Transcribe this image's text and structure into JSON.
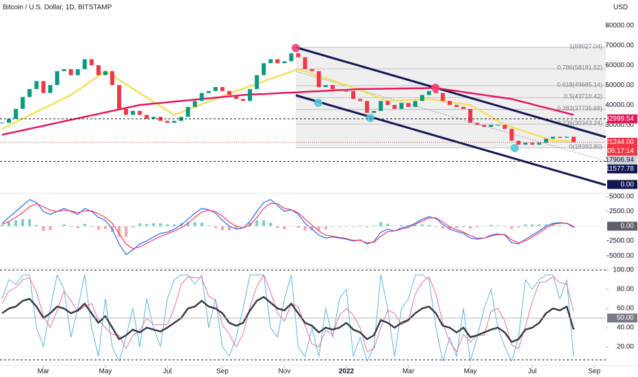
{
  "header": {
    "title": "Bitcoin / U.S. Dollar, 1D, BITSTAMP",
    "currency": "USD"
  },
  "chart_data": [
    {
      "type": "candlestick",
      "categories": [
        null,
        null,
        null,
        null,
        null,
        null,
        "Mar",
        null,
        null,
        null,
        null,
        null,
        null,
        null,
        null,
        "May",
        null,
        null,
        null,
        null,
        null,
        null,
        null,
        null,
        "Jul",
        null,
        null,
        null,
        null,
        null,
        null,
        null,
        "Sep",
        null,
        null,
        null,
        null,
        null,
        null,
        null,
        null,
        "Nov",
        null,
        null,
        null,
        null,
        null,
        null,
        null,
        null,
        "2022",
        null,
        null,
        null,
        null,
        null,
        null,
        null,
        null,
        "Mar",
        null,
        null,
        null,
        null,
        null,
        null,
        null,
        null,
        "May",
        null,
        null,
        null,
        null,
        null,
        null,
        null,
        null,
        "Jul",
        null,
        null,
        null,
        null,
        null,
        null,
        null,
        null,
        "Sep"
      ],
      "values": [
        31000,
        33000,
        38000,
        44000,
        48000,
        52000,
        46000,
        50000,
        57000,
        58000,
        55000,
        58000,
        63000,
        60000,
        55000,
        57000,
        50000,
        38000,
        35000,
        37000,
        35000,
        33000,
        34000,
        32000,
        31000,
        32000,
        34000,
        39000,
        42000,
        46000,
        47000,
        49000,
        47000,
        45000,
        43000,
        42000,
        48000,
        55000,
        61000,
        63000,
        61000,
        62000,
        66000,
        64000,
        58000,
        57000,
        49000,
        50000,
        48000,
        47000,
        47000,
        43000,
        42000,
        36000,
        37000,
        42000,
        40000,
        38000,
        41000,
        39000,
        42000,
        45000,
        47000,
        46000,
        42000,
        40000,
        39000,
        38000,
        31000,
        30000,
        29000,
        30000,
        30000,
        28000,
        22000,
        20000,
        21000,
        20000,
        21000,
        23000,
        24000,
        23500,
        24000,
        21244,
        null,
        null,
        null
      ],
      "up_color": "#089981",
      "down_color": "#f23645",
      "moving_averages": [
        {
          "color": "#f5e05a",
          "values": [
            28000,
            29700,
            31400,
            33100,
            34800,
            36500,
            38200,
            39900,
            41600,
            43300,
            45000,
            47400,
            49800,
            52200,
            54600,
            57000,
            54800,
            52600,
            50400,
            48200,
            46000,
            43800,
            41600,
            39400,
            37200,
            35000,
            36300,
            37700,
            39000,
            40300,
            41700,
            43000,
            44300,
            45700,
            47000,
            48200,
            49400,
            50700,
            51900,
            53100,
            54300,
            55600,
            56800,
            58000,
            56900,
            55700,
            54600,
            53400,
            52300,
            51100,
            50000,
            48700,
            47300,
            46000,
            44700,
            43300,
            42000,
            42200,
            42300,
            42500,
            42700,
            42800,
            43000,
            42500,
            42000,
            41500,
            41000,
            40500,
            40000,
            38000,
            36000,
            34000,
            32000,
            30000,
            28900,
            27700,
            26600,
            25400,
            24300,
            23100,
            22000,
            22000,
            21900,
            21800,
            null,
            null,
            null
          ]
        },
        {
          "color": "#e3175a",
          "values": [
            25000,
            25750,
            26500,
            27250,
            28000,
            28750,
            29500,
            30250,
            31000,
            31750,
            32500,
            33250,
            34000,
            34750,
            35500,
            36250,
            37000,
            37750,
            38500,
            39250,
            40000,
            40300,
            40700,
            41000,
            41300,
            41700,
            42000,
            42300,
            42700,
            43000,
            43300,
            43700,
            44000,
            44300,
            44700,
            45000,
            45200,
            45400,
            45500,
            45700,
            45900,
            46100,
            46200,
            46400,
            46600,
            46800,
            46900,
            47100,
            47300,
            47500,
            47600,
            47800,
            48000,
            48000,
            48100,
            48100,
            48200,
            48200,
            48300,
            48300,
            48400,
            48400,
            48500,
            48500,
            48000,
            47500,
            47000,
            46500,
            46000,
            45500,
            45000,
            44500,
            44000,
            43500,
            43000,
            42100,
            41200,
            40300,
            39400,
            38600,
            37700,
            36800,
            35900,
            35000,
            null,
            null,
            null
          ]
        }
      ],
      "ylim": [
        -4100,
        92800
      ],
      "yticks": [
        {
          "value": 30000,
          "label": "30000.00"
        },
        {
          "value": 40000,
          "label": "40000.00"
        },
        {
          "value": 50000,
          "label": "50000.00"
        },
        {
          "value": 60000,
          "label": "60000.00"
        },
        {
          "value": 70000,
          "label": "70000.00"
        },
        {
          "value": 80000,
          "label": "80000.00"
        }
      ],
      "fib_levels": [
        {
          "value": 69027.04,
          "label": "1(69027.04)"
        },
        {
          "value": 58191.52,
          "label": "0.786(58191.52)"
        },
        {
          "value": 49685.14,
          "label": "0.618(49685.14)"
        },
        {
          "value": 43710.42,
          "label": "0.5(43710.42)"
        },
        {
          "value": 37735.69,
          "label": "0.382(37735.69)"
        },
        {
          "value": 30343.24,
          "label": "0.236(30343.24)"
        },
        {
          "value": 18393.8,
          "label": "0(18393.80)"
        }
      ],
      "price_tags": [
        {
          "value": 32999.54,
          "label": "32999.54",
          "color": "#e3175a",
          "line": "dashed"
        },
        {
          "value": 21244.0,
          "label": "21244.00",
          "color": "#f23645",
          "line": "dotted",
          "countdown": "06:17:14"
        },
        {
          "value": 17906.94,
          "label": "17906.94",
          "color": "#d1d4dc"
        },
        {
          "value": 11577.78,
          "label": "11577.78",
          "color": "#131650",
          "line": "dashed"
        },
        {
          "value": 0,
          "label": "0.00",
          "color": "#131650"
        }
      ]
    },
    {
      "type": "macd",
      "series": [
        {
          "color": "#2962ff",
          "values": [
            500,
            1500,
            2500,
            3500,
            4500,
            4000,
            2500,
            2000,
            2500,
            3000,
            2500,
            2000,
            3000,
            2500,
            1500,
            1000,
            -500,
            -3000,
            -4800,
            -4000,
            -3000,
            -2500,
            -1800,
            -1200,
            -1000,
            -500,
            200,
            1200,
            2200,
            3000,
            2800,
            2200,
            1000,
            0,
            -500,
            -300,
            800,
            2500,
            4000,
            4500,
            3500,
            2500,
            2800,
            2000,
            500,
            -500,
            -1500,
            -2000,
            -1800,
            -2000,
            -2200,
            -2500,
            -2300,
            -3000,
            -2600,
            -1000,
            -500,
            -800,
            -300,
            0,
            500,
            1200,
            1600,
            1300,
            300,
            -500,
            -900,
            -1200,
            -2000,
            -2200,
            -2000,
            -1500,
            -1300,
            -1500,
            -2800,
            -3000,
            -2200,
            -1500,
            -800,
            0,
            500,
            600,
            500,
            -200,
            null,
            null,
            null
          ]
        },
        {
          "color": "#f0385e",
          "values": [
            300,
            800,
            1500,
            2300,
            3300,
            3800,
            3300,
            2700,
            2500,
            2700,
            2600,
            2300,
            2600,
            2600,
            2100,
            1500,
            500,
            -1200,
            -3000,
            -3800,
            -3500,
            -2900,
            -2300,
            -1700,
            -1300,
            -800,
            -300,
            500,
            1500,
            2400,
            2700,
            2500,
            1700,
            700,
            0,
            -300,
            200,
            1500,
            3000,
            3900,
            3800,
            3000,
            2800,
            2300,
            1200,
            200,
            -800,
            -1500,
            -1700,
            -1900,
            -2100,
            -2400,
            -2400,
            -2800,
            -2700,
            -1700,
            -900,
            -800,
            -500,
            -200,
            300,
            900,
            1400,
            1400,
            700,
            -100,
            -600,
            -1000,
            -1600,
            -2000,
            -2000,
            -1700,
            -1400,
            -1400,
            -2300,
            -2800,
            -2500,
            -1800,
            -1100,
            -300,
            300,
            500,
            500,
            0,
            null,
            null,
            null
          ]
        }
      ],
      "histogram": {
        "up_color": "#4db6ac",
        "down_color": "#f77c80",
        "values": [
          200,
          700,
          1000,
          1200,
          1200,
          200,
          -800,
          -700,
          0,
          300,
          -100,
          -300,
          400,
          -100,
          -600,
          -500,
          -1000,
          -1800,
          -1800,
          -200,
          500,
          400,
          500,
          500,
          300,
          300,
          500,
          700,
          700,
          600,
          100,
          -300,
          -700,
          -700,
          -500,
          0,
          600,
          1000,
          1000,
          600,
          -300,
          -500,
          0,
          -300,
          -700,
          -700,
          -700,
          -500,
          -100,
          -100,
          -100,
          -100,
          100,
          -200,
          100,
          700,
          400,
          0,
          200,
          200,
          200,
          300,
          200,
          -100,
          -400,
          -400,
          -300,
          -200,
          -400,
          -200,
          0,
          200,
          100,
          -100,
          -500,
          -200,
          300,
          300,
          300,
          300,
          200,
          100,
          0,
          -200,
          null,
          null,
          null
        ]
      },
      "ylim": [
        -6950,
        5450
      ],
      "yticks": [
        {
          "value": -5000,
          "label": "-5000.00"
        },
        {
          "value": -2500,
          "label": "-2500.00"
        },
        {
          "value": 2500,
          "label": "2500.00"
        },
        {
          "value": 5000,
          "label": "5000.00"
        }
      ],
      "price_tags": [
        {
          "value": 0,
          "label": "0.00",
          "color": "#5d606b"
        }
      ]
    },
    {
      "type": "oscillator",
      "series": [
        {
          "color": "#5ab3e6",
          "width": 1,
          "values": [
            70,
            90,
            85,
            95,
            95,
            40,
            20,
            60,
            95,
            80,
            30,
            60,
            95,
            40,
            10,
            70,
            20,
            5,
            30,
            60,
            20,
            70,
            40,
            20,
            70,
            90,
            95,
            95,
            85,
            95,
            40,
            70,
            20,
            10,
            30,
            60,
            95,
            95,
            95,
            40,
            30,
            70,
            95,
            20,
            10,
            40,
            10,
            60,
            30,
            70,
            80,
            10,
            30,
            5,
            20,
            95,
            60,
            10,
            60,
            70,
            95,
            95,
            90,
            40,
            5,
            30,
            10,
            60,
            5,
            30,
            60,
            80,
            40,
            20,
            5,
            30,
            90,
            80,
            90,
            95,
            95,
            70,
            90,
            10,
            null,
            null,
            null
          ]
        },
        {
          "color": "#e96f9a",
          "width": 1,
          "values": [
            65,
            78,
            82,
            90,
            92,
            77,
            52,
            40,
            58,
            78,
            68,
            57,
            62,
            65,
            48,
            40,
            33,
            32,
            18,
            32,
            37,
            50,
            43,
            43,
            43,
            60,
            85,
            93,
            92,
            92,
            73,
            68,
            43,
            33,
            20,
            33,
            62,
            83,
            95,
            77,
            55,
            47,
            65,
            62,
            42,
            23,
            20,
            37,
            33,
            53,
            60,
            53,
            40,
            15,
            18,
            40,
            58,
            55,
            43,
            47,
            75,
            87,
            93,
            75,
            45,
            25,
            15,
            33,
            25,
            32,
            32,
            57,
            60,
            47,
            22,
            18,
            42,
            67,
            87,
            88,
            93,
            87,
            85,
            57,
            null,
            null,
            null
          ]
        },
        {
          "color": "#363a45",
          "width": 2.5,
          "values": [
            55,
            60,
            62,
            68,
            70,
            62,
            50,
            55,
            62,
            60,
            55,
            58,
            65,
            55,
            45,
            52,
            40,
            28,
            32,
            38,
            35,
            40,
            38,
            36,
            40,
            45,
            50,
            60,
            62,
            68,
            62,
            60,
            55,
            45,
            42,
            45,
            58,
            68,
            72,
            66,
            60,
            58,
            65,
            55,
            45,
            42,
            35,
            40,
            38,
            40,
            45,
            38,
            35,
            28,
            32,
            48,
            45,
            40,
            45,
            48,
            55,
            60,
            62,
            55,
            42,
            40,
            35,
            40,
            30,
            32,
            35,
            38,
            40,
            35,
            25,
            28,
            38,
            40,
            45,
            55,
            60,
            58,
            62,
            38,
            null,
            null,
            null
          ]
        }
      ],
      "ylim": [
        1.4,
        101.4
      ],
      "yticks": [
        {
          "value": 20,
          "label": "20.00"
        },
        {
          "value": 40,
          "label": "40.00"
        },
        {
          "value": 60,
          "label": "60.00"
        },
        {
          "value": 80,
          "label": "80.00"
        },
        {
          "value": 100,
          "label": "100.00"
        }
      ],
      "price_tags": [
        {
          "value": 50,
          "label": "50.00",
          "color": "#787b86"
        }
      ]
    }
  ]
}
